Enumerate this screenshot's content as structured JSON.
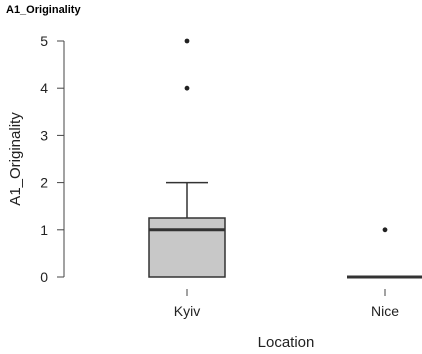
{
  "chart_data": {
    "type": "box",
    "title": "A1_Originality",
    "xlabel": "Location",
    "ylabel": "A1_Originality",
    "ylim": [
      0,
      5
    ],
    "yticks": [
      0,
      1,
      2,
      3,
      4,
      5
    ],
    "categories": [
      "Kyiv",
      "Nice"
    ],
    "boxes": [
      {
        "category": "Kyiv",
        "min": 0,
        "q1": 0,
        "median": 1,
        "q3": 1.25,
        "max": 2,
        "outliers": [
          4,
          5
        ]
      },
      {
        "category": "Nice",
        "min": 0,
        "q1": 0,
        "median": 0,
        "q3": 0,
        "max": 0,
        "outliers": [
          1
        ]
      }
    ],
    "colors": {
      "box_fill": "#c8c8c8",
      "line": "#333333",
      "median": "#333333"
    },
    "grid": false,
    "legend": "none"
  }
}
